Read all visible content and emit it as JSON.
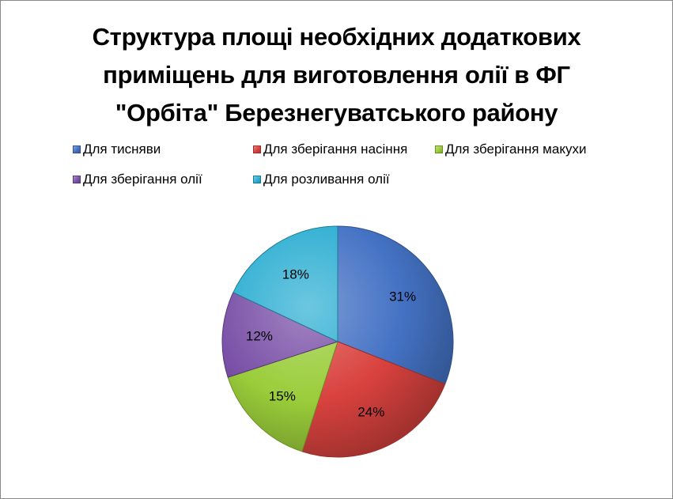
{
  "chart_data": {
    "type": "pie",
    "title": "Структура площі необхідних додаткових приміщень для виготовлення олії в ФГ \"Орбіта\" Березнегуватського району",
    "title_lines": [
      "Структура площі необхідних додаткових",
      "приміщень для виготовлення олії в ФГ",
      "\"Орбіта\" Березнегуватського району"
    ],
    "legend_placement": "top",
    "categories": [
      "Для тисняви",
      "Для зберігання насіння",
      "Для зберігання макухи",
      "Для зберігання олії",
      "Для розливання олії"
    ],
    "values": [
      31,
      24,
      15,
      12,
      18
    ],
    "data_labels": [
      "31%",
      "24%",
      "15%",
      "12%",
      "18%"
    ],
    "colors": [
      "#4472C4",
      "#D9423E",
      "#9ACD3A",
      "#7B52A8",
      "#2FAFD3"
    ]
  }
}
